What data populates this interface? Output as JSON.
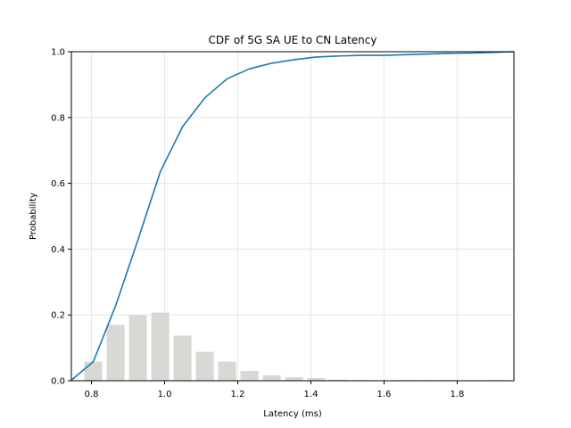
{
  "chart_data": {
    "type": "line",
    "title": "CDF of 5G SA UE to CN Latency",
    "xlabel": "Latency (ms)",
    "ylabel": "Probability",
    "xlim": [
      0.745,
      1.955
    ],
    "ylim": [
      0.0,
      1.0
    ],
    "xticks": [
      "0.8",
      "1.0",
      "1.2",
      "1.4",
      "1.6",
      "1.8"
    ],
    "yticks": [
      "0.0",
      "0.2",
      "0.4",
      "0.6",
      "0.8",
      "1.0"
    ],
    "grid": true,
    "colors": {
      "line": "#1f77b4",
      "bars": "#d8d8d5",
      "grid": "#e6e6e6"
    },
    "series": [
      {
        "type": "line",
        "x": [
          0.743,
          0.805,
          0.866,
          0.927,
          0.988,
          1.049,
          1.11,
          1.171,
          1.232,
          1.293,
          1.354,
          1.415,
          1.476,
          1.537,
          1.598,
          1.659,
          1.72,
          1.781,
          1.842,
          1.903,
          1.955
        ],
        "values": [
          0.0,
          0.058,
          0.228,
          0.428,
          0.635,
          0.772,
          0.86,
          0.918,
          0.948,
          0.965,
          0.976,
          0.984,
          0.987,
          0.989,
          0.989,
          0.991,
          0.993,
          0.995,
          0.996,
          0.998,
          1.0
        ]
      },
      {
        "type": "bar",
        "x": [
          0.805,
          0.866,
          0.927,
          0.988,
          1.049,
          1.11,
          1.171,
          1.232,
          1.293,
          1.354,
          1.415,
          1.476,
          1.537,
          1.598,
          1.659,
          1.72,
          1.781,
          1.842,
          1.903
        ],
        "values": [
          0.058,
          0.17,
          0.2,
          0.207,
          0.137,
          0.088,
          0.058,
          0.03,
          0.017,
          0.011,
          0.008,
          0.003,
          0.002,
          0.001,
          0.002,
          0.002,
          0.002,
          0.001,
          0.002
        ],
        "bar_width": 0.049
      }
    ]
  }
}
